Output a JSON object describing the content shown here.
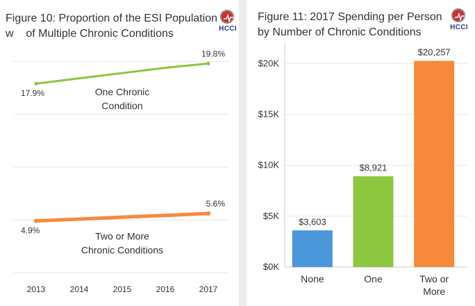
{
  "figure10": {
    "title_line1": "Figure 10: Proportion of the ESI Population",
    "title_line2": "w    of Multiple Chronic Conditions",
    "logo_text": "HCCI",
    "colors": {
      "one": "#8cc63f",
      "two": "#f68a3a",
      "grid": "#e4e4e4"
    },
    "chart_data": {
      "type": "line",
      "x": [
        "2013",
        "2014",
        "2015",
        "2016",
        "2017"
      ],
      "series": [
        {
          "name_lines": [
            "One Chronic",
            "Condition"
          ],
          "values": [
            17.9,
            18.4,
            18.9,
            19.4,
            19.8
          ],
          "start_label": "17.9%",
          "end_label": "19.8%"
        },
        {
          "name_lines": [
            "Two or More",
            "Chronic Conditions"
          ],
          "values": [
            4.9,
            5.07,
            5.25,
            5.42,
            5.6
          ],
          "start_label": "4.9%",
          "end_label": "5.6%"
        }
      ],
      "ylim": [
        0,
        22
      ],
      "grid": true,
      "legend": "inline"
    }
  },
  "figure11": {
    "title_line1": "Figure 11: 2017 Spending per Person",
    "title_line2": "by Number of Chronic Conditions",
    "logo_text": "HCCI",
    "chart_data": {
      "type": "bar",
      "categories": [
        {
          "lines": [
            "None"
          ]
        },
        {
          "lines": [
            "One"
          ]
        },
        {
          "lines": [
            "Two or",
            "More"
          ]
        }
      ],
      "values": [
        3603,
        8921,
        20257
      ],
      "value_labels": [
        "$3,603",
        "$8,921",
        "$20,257"
      ],
      "colors": [
        "#4a97dc",
        "#8dc63f",
        "#f68a3a"
      ],
      "yticks": [
        {
          "value": 0,
          "label": "$0K"
        },
        {
          "value": 5000,
          "label": "$5K"
        },
        {
          "value": 10000,
          "label": "$10K"
        },
        {
          "value": 15000,
          "label": "$15K"
        },
        {
          "value": 20000,
          "label": "$20K"
        }
      ],
      "ylim": [
        0,
        22000
      ],
      "grid": true
    }
  }
}
